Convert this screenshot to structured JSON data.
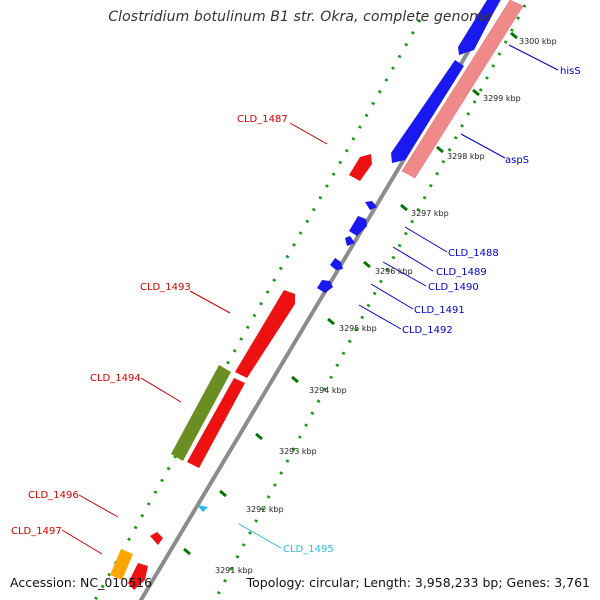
{
  "title": "Clostridium botulinum B1 str. Okra, complete genome",
  "accession": "Accession: NC_010516",
  "summary": "Topology: circular; Length: 3,958,233 bp; Genes: 3,761",
  "colors": {
    "backbone": "#909090",
    "forward_cds": "#ff0000",
    "reverse_cds": "#0000ff",
    "rna_like": "#00b4ff",
    "green_feature": "#6b8e23",
    "orange_feature": "#ffa500",
    "pink_feature": "#f08080",
    "tick": "#008800"
  },
  "scale_labels": [
    "3300 kbp",
    "3299 kbp",
    "3298 kbp",
    "3297 kbp",
    "3296 kbp",
    "3295 kbp",
    "3294 kbp",
    "3293 kbp",
    "3292 kbp",
    "3291 kbp"
  ],
  "gene_labels": [
    {
      "text": "hisS",
      "color": "#0000cc"
    },
    {
      "text": "aspS",
      "color": "#0000cc"
    },
    {
      "text": "CLD_1487",
      "color": "#cc0000"
    },
    {
      "text": "CLD_1488",
      "color": "#0000cc"
    },
    {
      "text": "CLD_1489",
      "color": "#0000cc"
    },
    {
      "text": "CLD_1490",
      "color": "#0000cc"
    },
    {
      "text": "CLD_1491",
      "color": "#0000cc"
    },
    {
      "text": "CLD_1492",
      "color": "#0000cc"
    },
    {
      "text": "CLD_1493",
      "color": "#cc0000"
    },
    {
      "text": "CLD_1494",
      "color": "#cc0000"
    },
    {
      "text": "CLD_1495",
      "color": "#33bbdd"
    },
    {
      "text": "CLD_1496",
      "color": "#cc0000"
    },
    {
      "text": "CLD_1497",
      "color": "#cc0000"
    }
  ]
}
